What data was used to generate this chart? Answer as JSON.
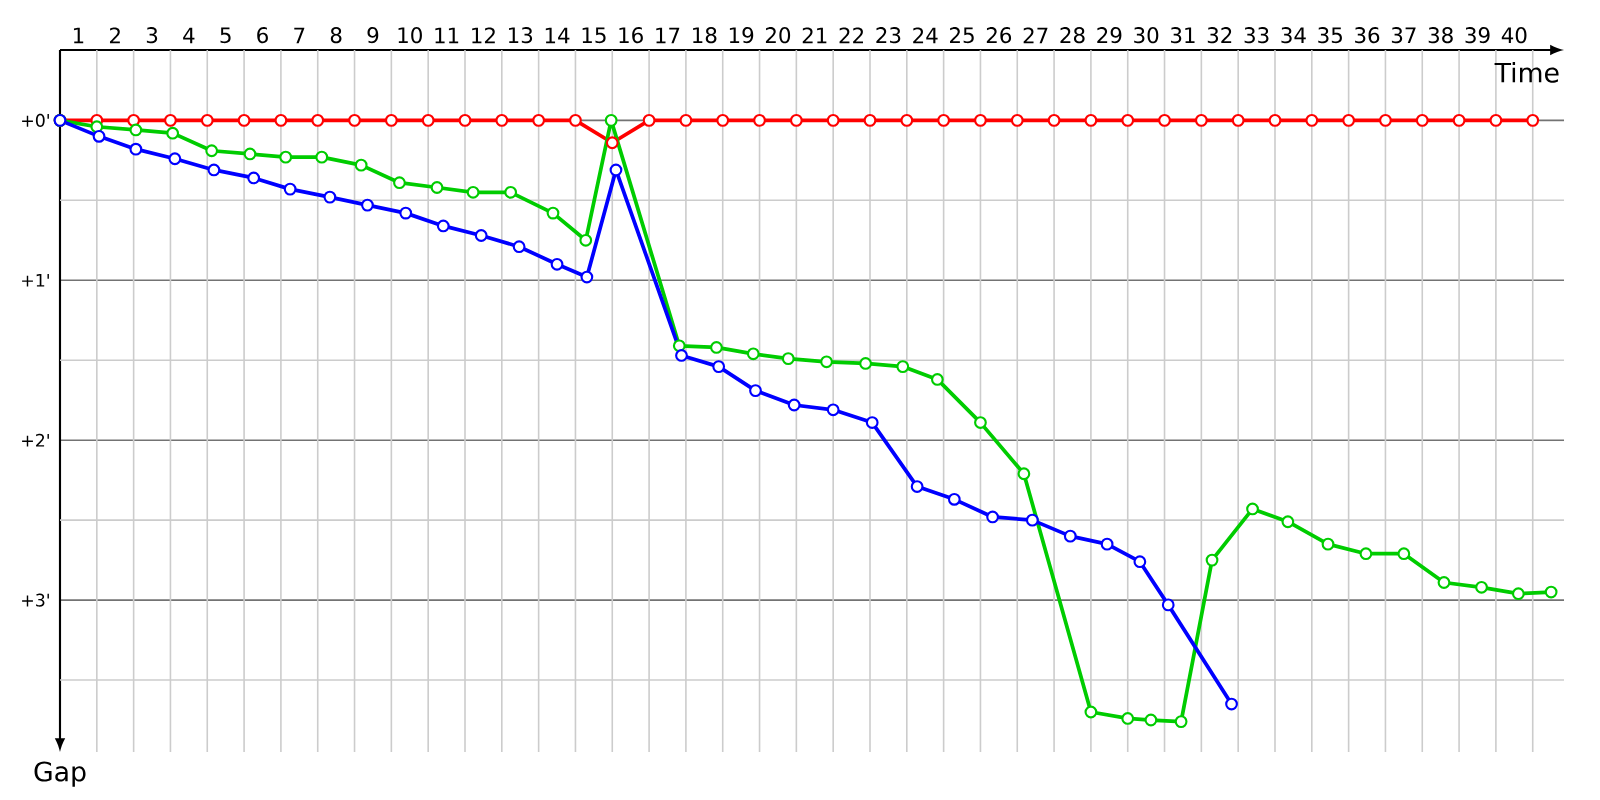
{
  "chart_data": {
    "type": "line",
    "xlabel": "Time",
    "ylabel": "Gap",
    "xlim": [
      0.5,
      41.35
    ],
    "ylim": [
      3.95,
      -0.44
    ],
    "xticks": [
      1,
      2,
      3,
      4,
      5,
      6,
      7,
      8,
      9,
      10,
      11,
      12,
      13,
      14,
      15,
      16,
      17,
      18,
      19,
      20,
      21,
      22,
      23,
      24,
      25,
      26,
      27,
      28,
      29,
      30,
      31,
      32,
      33,
      34,
      35,
      36,
      37,
      38,
      39,
      40,
      {
        "value": 1.5,
        "label": null
      },
      {
        "value": 2.5,
        "label": null
      },
      {
        "value": 3.5,
        "label": null
      },
      {
        "value": 4.5,
        "label": null
      },
      {
        "value": 5.5,
        "label": null
      },
      {
        "value": 6.5,
        "label": null
      },
      {
        "value": 7.5,
        "label": null
      },
      {
        "value": 8.5,
        "label": null
      },
      {
        "value": 9.5,
        "label": null
      },
      {
        "value": 10.5,
        "label": null
      },
      {
        "value": 11.5,
        "label": null
      },
      {
        "value": 12.5,
        "label": null
      },
      {
        "value": 13.5,
        "label": null
      },
      {
        "value": 14.5,
        "label": null
      },
      {
        "value": 15.5,
        "label": null
      },
      {
        "value": 16.5,
        "label": null
      },
      {
        "value": 17.5,
        "label": null
      },
      {
        "value": 18.5,
        "label": null
      },
      {
        "value": 19.5,
        "label": null
      },
      {
        "value": 20.5,
        "label": null
      },
      {
        "value": 21.5,
        "label": null
      },
      {
        "value": 22.5,
        "label": null
      },
      {
        "value": 23.5,
        "label": null
      },
      {
        "value": 24.5,
        "label": null
      },
      {
        "value": 25.5,
        "label": null
      },
      {
        "value": 26.5,
        "label": null
      },
      {
        "value": 27.5,
        "label": null
      },
      {
        "value": 28.5,
        "label": null
      },
      {
        "value": 29.5,
        "label": null
      },
      {
        "value": 30.5,
        "label": null
      },
      {
        "value": 31.5,
        "label": null
      },
      {
        "value": 32.5,
        "label": null
      },
      {
        "value": 33.5,
        "label": null
      },
      {
        "value": 34.5,
        "label": null
      },
      {
        "value": 35.5,
        "label": null
      },
      {
        "value": 36.5,
        "label": null
      },
      {
        "value": 37.5,
        "label": null
      },
      {
        "value": 38.5,
        "label": null
      },
      {
        "value": 39.5,
        "label": null
      },
      {
        "value": 40.5,
        "label": null
      }
    ],
    "yticks": [
      {
        "value": 0,
        "label": "+0'"
      },
      {
        "value": 1,
        "label": "+1'"
      },
      {
        "value": 2,
        "label": "+2'"
      },
      {
        "value": 3,
        "label": "+3'"
      },
      {
        "value": 0.5,
        "label": null
      },
      {
        "value": 1.5,
        "label": null
      },
      {
        "value": 2.5,
        "label": null
      },
      {
        "value": 3.5,
        "label": null
      }
    ],
    "grid": true,
    "marker": "circle",
    "line_style": "solid",
    "series": [
      {
        "color": "#ff0000",
        "x": [
          0.5,
          1.5,
          2.5,
          3.5,
          4.5,
          5.5,
          6.5,
          7.5,
          8.5,
          9.5,
          10.5,
          11.5,
          12.5,
          13.5,
          14.5,
          15.5,
          16.5,
          17.5,
          18.5,
          19.5,
          20.5,
          21.5,
          22.5,
          23.5,
          24.5,
          25.5,
          26.5,
          27.5,
          28.5,
          29.5,
          30.5,
          31.5,
          32.5,
          33.5,
          34.5,
          35.5,
          36.5,
          37.5,
          38.5,
          39.5,
          40.5
        ],
        "values": [
          0,
          0,
          0,
          0,
          0,
          0,
          0,
          0,
          0,
          0,
          0,
          0,
          0,
          0,
          0,
          0.14,
          0,
          0,
          0,
          0,
          0,
          0,
          0,
          0,
          0,
          0,
          0,
          0,
          0,
          0,
          0,
          0,
          0,
          0,
          0,
          0,
          0,
          0,
          0,
          0,
          0
        ]
      },
      {
        "color": "#00cc00",
        "x": [
          0.5,
          1.5,
          2.56,
          3.56,
          4.62,
          5.66,
          6.63,
          7.61,
          8.68,
          9.72,
          10.74,
          11.72,
          12.74,
          13.89,
          14.78,
          15.47,
          17.32,
          18.33,
          19.33,
          20.28,
          21.32,
          22.38,
          23.39,
          24.33,
          25.5,
          26.68,
          28.5,
          29.5,
          30.13,
          30.95,
          31.79,
          32.89,
          33.85,
          34.94,
          35.97,
          37.0,
          38.09,
          39.11,
          40.11,
          41.0
        ],
        "values": [
          0,
          0.04,
          0.06,
          0.08,
          0.19,
          0.21,
          0.23,
          0.23,
          0.28,
          0.39,
          0.42,
          0.45,
          0.45,
          0.58,
          0.75,
          0.0,
          1.41,
          1.42,
          1.46,
          1.49,
          1.51,
          1.52,
          1.54,
          1.62,
          1.89,
          2.21,
          3.7,
          3.74,
          3.75,
          3.76,
          2.75,
          2.43,
          2.51,
          2.65,
          2.71,
          2.71,
          2.89,
          2.92,
          2.96,
          2.95
        ]
      },
      {
        "color": "#0000ff",
        "x": [
          0.5,
          1.56,
          2.56,
          3.62,
          4.68,
          5.76,
          6.75,
          7.83,
          8.85,
          9.89,
          10.91,
          11.94,
          12.97,
          14.0,
          14.81,
          15.6,
          17.38,
          18.39,
          19.39,
          20.44,
          21.5,
          22.56,
          23.78,
          24.79,
          25.83,
          26.91,
          27.94,
          28.94,
          29.83,
          30.6,
          32.32
        ],
        "values": [
          0,
          0.1,
          0.18,
          0.24,
          0.31,
          0.36,
          0.43,
          0.48,
          0.53,
          0.58,
          0.66,
          0.72,
          0.79,
          0.9,
          0.98,
          0.31,
          1.47,
          1.54,
          1.69,
          1.78,
          1.81,
          1.89,
          2.29,
          2.37,
          2.48,
          2.5,
          2.6,
          2.65,
          2.76,
          3.03,
          3.65
        ]
      }
    ]
  }
}
